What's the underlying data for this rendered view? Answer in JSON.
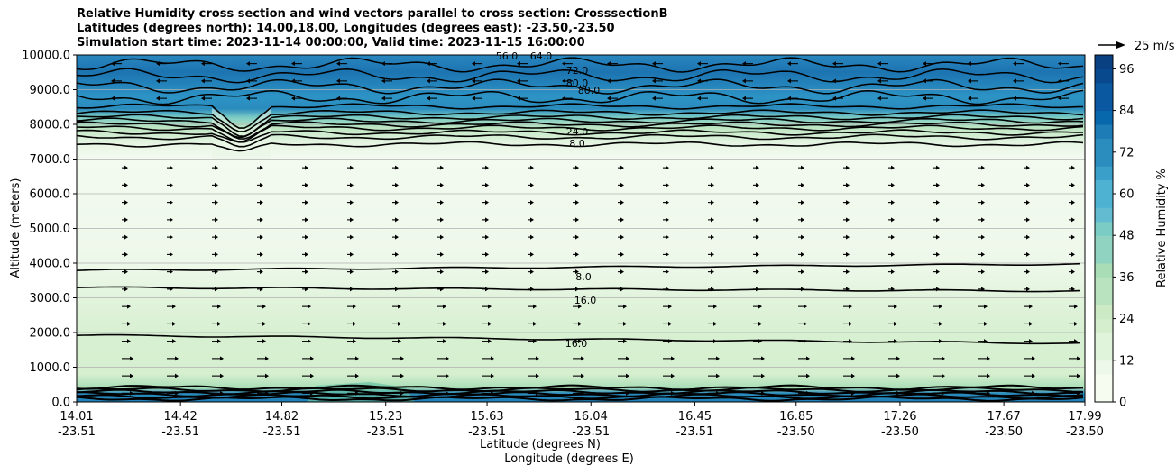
{
  "titles": [
    "Relative Humidity cross section and wind vectors parallel to cross section: CrosssectionB",
    "Latitudes (degrees north): 14.00,18.00, Longitudes (degrees east): -23.50,-23.50",
    "Simulation start time: 2023-11-14 00:00:00, Valid time: 2023-11-15 16:00:00"
  ],
  "quiver_key_label": "25 m/s",
  "chart_data": {
    "type": "heatmap",
    "xlabel": "Latitude (degrees N)",
    "xlabel2": "Longitude (degrees E)",
    "ylabel": "Altitude (meters)",
    "colorbar_label": "Relative Humidity %",
    "colormap": "GnBu",
    "ylim": [
      0,
      10000
    ],
    "xlim": [
      14.01,
      17.99
    ],
    "y_ticks": [
      "0.0",
      "1000.0",
      "2000.0",
      "3000.0",
      "4000.0",
      "5000.0",
      "6000.0",
      "7000.0",
      "8000.0",
      "9000.0",
      "10000.0"
    ],
    "x_ticks": [
      {
        "lat": "14.01",
        "lon": "-23.51"
      },
      {
        "lat": "14.42",
        "lon": "-23.51"
      },
      {
        "lat": "14.82",
        "lon": "-23.51"
      },
      {
        "lat": "15.23",
        "lon": "-23.51"
      },
      {
        "lat": "15.63",
        "lon": "-23.51"
      },
      {
        "lat": "16.04",
        "lon": "-23.51"
      },
      {
        "lat": "16.45",
        "lon": "-23.51"
      },
      {
        "lat": "16.85",
        "lon": "-23.50"
      },
      {
        "lat": "17.26",
        "lon": "-23.50"
      },
      {
        "lat": "17.67",
        "lon": "-23.50"
      },
      {
        "lat": "17.99",
        "lon": "-23.50"
      }
    ],
    "colorbar_ticks": [
      "0",
      "12",
      "24",
      "36",
      "48",
      "60",
      "72",
      "84",
      "96"
    ],
    "colorbar_range": [
      0,
      100
    ],
    "grid": true,
    "contour_labels": [
      "8.0",
      "16.0",
      "16.0",
      "24.0",
      "8.0",
      "80.0",
      "72.0",
      "64.0",
      "56.0",
      "80.0"
    ],
    "rh_profile": [
      {
        "altitude": 0,
        "rh": 88
      },
      {
        "altitude": 300,
        "rh": 80
      },
      {
        "altitude": 600,
        "rh": 30
      },
      {
        "altitude": 1000,
        "rh": 20
      },
      {
        "altitude": 2000,
        "rh": 18
      },
      {
        "altitude": 3000,
        "rh": 14
      },
      {
        "altitude": 4000,
        "rh": 8
      },
      {
        "altitude": 5000,
        "rh": 5
      },
      {
        "altitude": 6000,
        "rh": 4
      },
      {
        "altitude": 7000,
        "rh": 6
      },
      {
        "altitude": 7500,
        "rh": 14
      },
      {
        "altitude": 8000,
        "rh": 40
      },
      {
        "altitude": 8400,
        "rh": 75
      },
      {
        "altitude": 9000,
        "rh": 82
      },
      {
        "altitude": 10000,
        "rh": 80
      }
    ],
    "wind": [
      {
        "altitude_min": 0,
        "altitude_max": 7000,
        "direction": "right"
      },
      {
        "altitude_min": 8500,
        "altitude_max": 10000,
        "direction": "left"
      }
    ]
  }
}
